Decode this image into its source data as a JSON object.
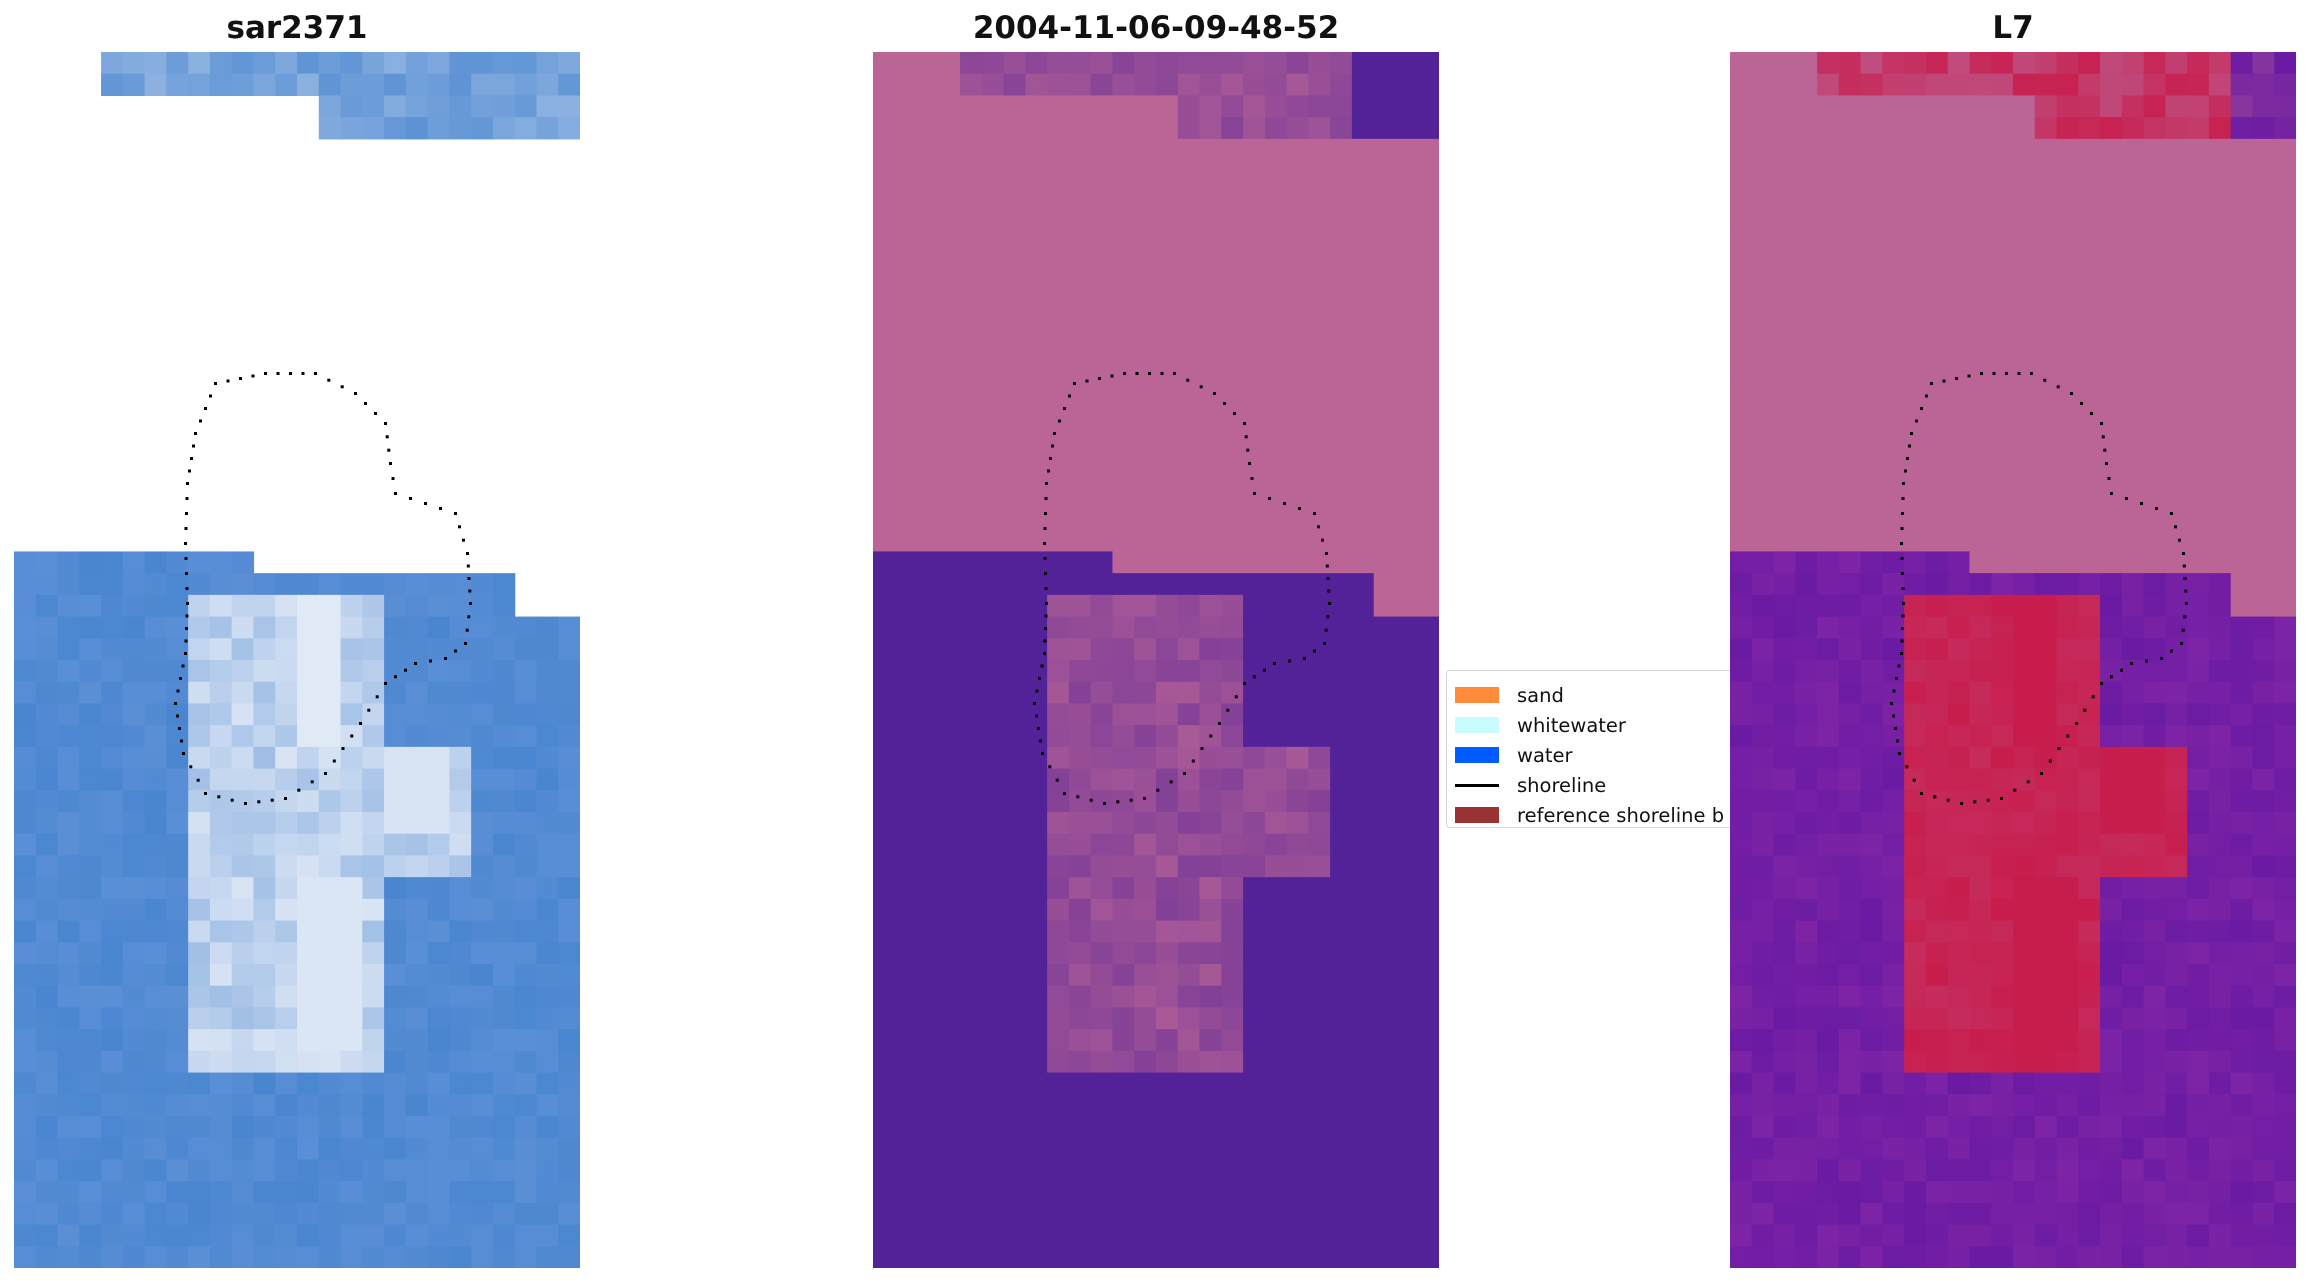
{
  "panels": [
    {
      "title": "sar2371"
    },
    {
      "title": "2004-11-06-09-48-52"
    },
    {
      "title": "L7"
    }
  ],
  "legend": {
    "items": [
      {
        "label": "sand",
        "color": "#ff8c3a"
      },
      {
        "label": "whitewater",
        "color": "#c8fcff"
      },
      {
        "label": "water",
        "color": "#005cff"
      },
      {
        "label": "shoreline",
        "color": "#000000"
      },
      {
        "label": "reference shoreline b",
        "color": "#993333"
      }
    ]
  },
  "colors": {
    "rgb_water": "#4a86d0",
    "rgb_land_white": "#e8eef8",
    "class_background": "#bb6596",
    "class_water": "#542298",
    "mndwi_low": "#6a1aa3",
    "mndwi_high": "#c81a4a"
  }
}
